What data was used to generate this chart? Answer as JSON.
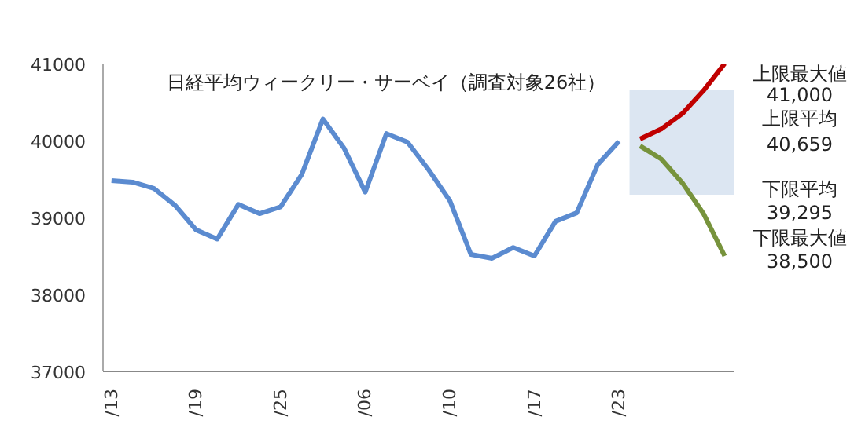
{
  "chart_data": {
    "type": "line",
    "title": "日経平均ウィークリー・サーベイ（調査対象26社）",
    "categories": [
      "/13",
      null,
      null,
      null,
      "/19",
      null,
      null,
      null,
      "/25",
      null,
      null,
      null,
      "/06",
      null,
      null,
      null,
      "/10",
      null,
      null,
      null,
      "/17",
      null,
      null,
      null,
      "/23",
      null,
      null,
      null,
      null,
      null
    ],
    "series": [
      {
        "color": "#5b8bd0",
        "values": [
          39480,
          39460,
          39380,
          39160,
          38840,
          38720,
          39170,
          39050,
          39140,
          39560,
          40280,
          39900,
          39330,
          40090,
          39980,
          39620,
          39220,
          38520,
          38470,
          38610,
          38500,
          38950,
          39060,
          39690,
          39990,
          null,
          null,
          null,
          null,
          null
        ]
      },
      {
        "color": "#c00000",
        "values": [
          null,
          null,
          null,
          null,
          null,
          null,
          null,
          null,
          null,
          null,
          null,
          null,
          null,
          null,
          null,
          null,
          null,
          null,
          null,
          null,
          null,
          null,
          null,
          null,
          null,
          40020,
          40150,
          40350,
          40650,
          41000
        ]
      },
      {
        "color": "#77933c",
        "values": [
          null,
          null,
          null,
          null,
          null,
          null,
          null,
          null,
          null,
          null,
          null,
          null,
          null,
          null,
          null,
          null,
          null,
          null,
          null,
          null,
          null,
          null,
          null,
          null,
          null,
          39930,
          39760,
          39450,
          39050,
          38500
        ]
      }
    ],
    "bands": [
      {
        "axis": "y",
        "from": 39295,
        "to": 40659,
        "color": "#dce6f2"
      }
    ],
    "ylim": [
      37000,
      41000
    ],
    "yticks": [
      37000,
      38000,
      39000,
      40000,
      41000
    ],
    "grid": false,
    "marker": "none",
    "line_style": "solid",
    "annotations": [
      "上限最大値",
      "41,000",
      "上限平均",
      "40,659",
      "下限平均",
      "39,295",
      "下限最大値",
      "38,500"
    ]
  }
}
